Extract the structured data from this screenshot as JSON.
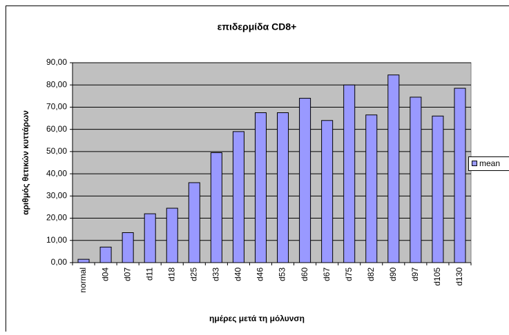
{
  "chart_data": {
    "type": "bar",
    "title": "επιδερμίδα CD8+",
    "x_label": "ημέρες μετά τη μόλυνση",
    "y_label": "αριθμός θετικών κυττάρων",
    "categories": [
      "normal",
      "d04",
      "d07",
      "d11",
      "d18",
      "d25",
      "d33",
      "d40",
      "d46",
      "d53",
      "d60",
      "d67",
      "d75",
      "d82",
      "d90",
      "d97",
      "d105",
      "d130"
    ],
    "series": [
      {
        "name": "mean",
        "color": "#9999ff",
        "values": [
          1.5,
          7,
          13.5,
          22,
          24.5,
          36,
          49.5,
          59,
          67.5,
          67.5,
          74,
          64,
          80,
          66.5,
          84.5,
          74.5,
          66,
          78.5
        ]
      }
    ],
    "ylim": [
      0,
      90
    ],
    "yticks": [
      {
        "value": 0,
        "label": "0,00"
      },
      {
        "value": 10,
        "label": "10,00"
      },
      {
        "value": 20,
        "label": "20,00"
      },
      {
        "value": 30,
        "label": "30,00"
      },
      {
        "value": 40,
        "label": "40,00"
      },
      {
        "value": 50,
        "label": "50,00"
      },
      {
        "value": 60,
        "label": "60,00"
      },
      {
        "value": 70,
        "label": "70,00"
      },
      {
        "value": 80,
        "label": "80,00"
      },
      {
        "value": 90,
        "label": "90,00"
      }
    ],
    "grid": true,
    "legend": "right"
  }
}
